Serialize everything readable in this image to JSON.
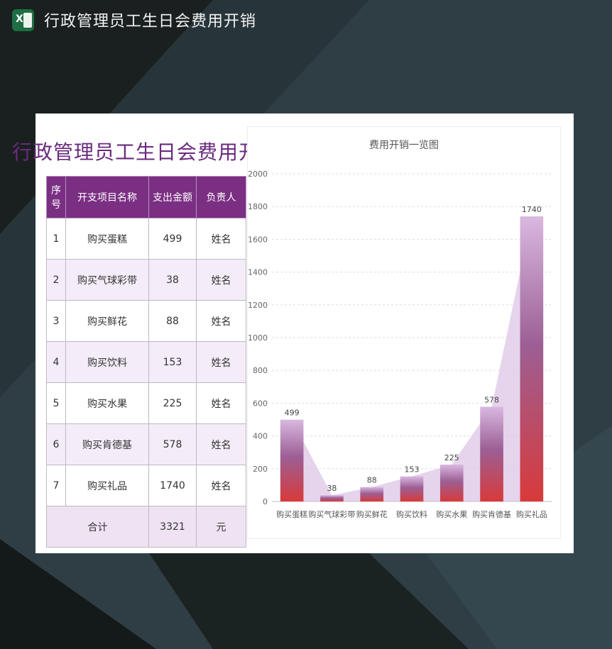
{
  "window": {
    "title": "行政管理员工生日会费用开销",
    "app_icon": "excel-icon"
  },
  "sheet": {
    "title": "行政管理员工生日会费用开销",
    "headers": [
      "序号",
      "开支项目名称",
      "支出金额",
      "负责人"
    ],
    "rows": [
      [
        "1",
        "购买蛋糕",
        "499",
        "姓名"
      ],
      [
        "2",
        "购买气球彩带",
        "38",
        "姓名"
      ],
      [
        "3",
        "购买鲜花",
        "88",
        "姓名"
      ],
      [
        "4",
        "购买饮料",
        "153",
        "姓名"
      ],
      [
        "5",
        "购买水果",
        "225",
        "姓名"
      ],
      [
        "6",
        "购买肯德基",
        "578",
        "姓名"
      ],
      [
        "7",
        "购买礼品",
        "1740",
        "姓名"
      ]
    ],
    "total": {
      "label": "合计",
      "amount": "3321",
      "unit": "元"
    }
  },
  "colors": {
    "header_bg": "#7a2f83",
    "title_text": "#6a2a7d",
    "bar_top": "#d9b8e0",
    "bar_mid": "#9c5f95",
    "bar_bottom": "#d83a3a",
    "area_fill": "#dcc6e6"
  },
  "chart_data": {
    "type": "bar",
    "title": "费用开销一览图",
    "categories": [
      "购买蛋糕",
      "购买气球彩带",
      "购买鲜花",
      "购买饮料",
      "购买水果",
      "购买肯德基",
      "购买礼品"
    ],
    "values": [
      499,
      38,
      88,
      153,
      225,
      578,
      1740
    ],
    "ylim": [
      0,
      2000
    ],
    "yticks": [
      0,
      200,
      400,
      600,
      800,
      1000,
      1200,
      1400,
      1600,
      1800,
      2000
    ],
    "grid": true,
    "data_labels": true,
    "legend": "none"
  }
}
